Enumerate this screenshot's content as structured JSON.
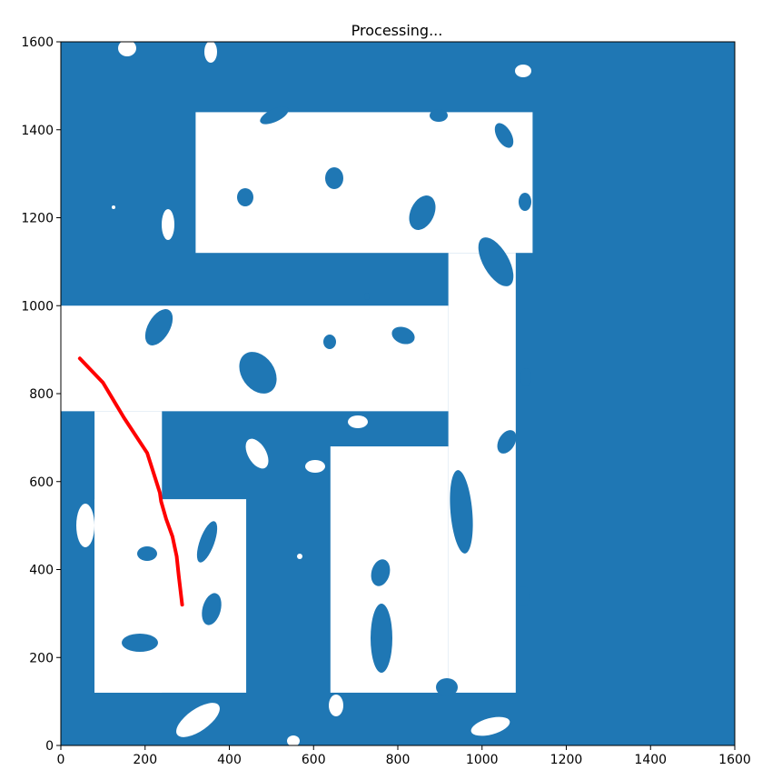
{
  "chart_data": {
    "type": "map",
    "title": "Processing...",
    "xlim": [
      0,
      1600
    ],
    "ylim": [
      0,
      1600
    ],
    "xticks": [
      0,
      200,
      400,
      600,
      800,
      1000,
      1200,
      1400,
      1600
    ],
    "yticks": [
      0,
      200,
      400,
      600,
      800,
      1000,
      1200,
      1400,
      1600
    ],
    "grid": false,
    "colors": {
      "obstacle": "#1f77b4",
      "free": "#ffffff",
      "path": "#ff0000",
      "axis": "#000000"
    },
    "free_regions": [
      {
        "name": "upper-room",
        "x0": 320,
        "x1": 1120,
        "y0": 1120,
        "y1": 1440
      },
      {
        "name": "middle-corridor",
        "x0": 0,
        "x1": 920,
        "y0": 760,
        "y1": 1000
      },
      {
        "name": "vertical-corridor",
        "x0": 920,
        "x1": 1080,
        "y0": 120,
        "y1": 1120
      },
      {
        "name": "left-corridor",
        "x0": 80,
        "x1": 240,
        "y0": 120,
        "y1": 760
      },
      {
        "name": "lower-left-room",
        "x0": 80,
        "x1": 440,
        "y0": 120,
        "y1": 560
      },
      {
        "name": "lower-middle-room",
        "x0": 640,
        "x1": 920,
        "y0": 120,
        "y1": 680
      }
    ],
    "path_points": [
      [
        45,
        880
      ],
      [
        100,
        825
      ],
      [
        150,
        745
      ],
      [
        205,
        665
      ],
      [
        235,
        575
      ],
      [
        238,
        555
      ],
      [
        250,
        515
      ],
      [
        265,
        475
      ],
      [
        275,
        430
      ],
      [
        280,
        385
      ],
      [
        288,
        320
      ]
    ]
  }
}
